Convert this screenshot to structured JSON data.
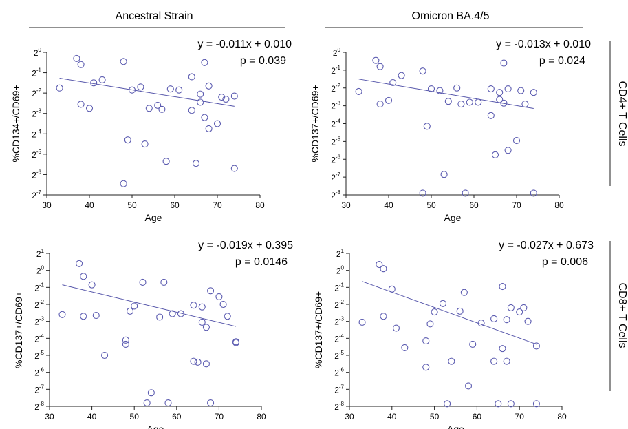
{
  "columns": [
    "Ancestral Strain",
    "Omicron BA.4/5"
  ],
  "rows": [
    "CD4+ T Cells",
    "CD8+ T Cells"
  ],
  "colors": {
    "points": "#5b5bb0",
    "line": "#5555aa",
    "axis": "#222222"
  },
  "chart_data": [
    {
      "type": "scatter",
      "panel": "top-left",
      "title": "Ancestral Strain",
      "xlabel": "Age",
      "ylabel": "%CD134+/CD69+",
      "yscale": "log2",
      "xlim": [
        30,
        80
      ],
      "ylim_exp": [
        -7,
        0
      ],
      "xticks": [
        "30",
        "40",
        "50",
        "60",
        "70",
        "80"
      ],
      "yticks": [
        {
          "base": "2",
          "exp": "0"
        },
        {
          "base": "2",
          "exp": "-1"
        },
        {
          "base": "2",
          "exp": "-2"
        },
        {
          "base": "2",
          "exp": "-3"
        },
        {
          "base": "2",
          "exp": "-4"
        },
        {
          "base": "2",
          "exp": "-5"
        },
        {
          "base": "2",
          "exp": "-6"
        },
        {
          "base": "2",
          "exp": "-7"
        }
      ],
      "equation": "y = -0.011x + 0.010",
      "pvalue": "p = 0.039",
      "fit_exp": [
        [
          33,
          -1.27
        ],
        [
          74,
          -2.65
        ]
      ],
      "points": [
        [
          33,
          -1.75
        ],
        [
          37,
          -0.3
        ],
        [
          38,
          -0.6
        ],
        [
          38,
          -2.55
        ],
        [
          40,
          -2.75
        ],
        [
          41,
          -1.5
        ],
        [
          43,
          -1.35
        ],
        [
          48,
          -0.45
        ],
        [
          48,
          -6.45
        ],
        [
          49,
          -4.3
        ],
        [
          50,
          -1.85
        ],
        [
          52,
          -1.7
        ],
        [
          53,
          -4.5
        ],
        [
          54,
          -2.75
        ],
        [
          56,
          -2.6
        ],
        [
          57,
          -2.8
        ],
        [
          58,
          -5.35
        ],
        [
          59,
          -1.8
        ],
        [
          61,
          -1.85
        ],
        [
          64,
          -1.2
        ],
        [
          64,
          -2.85
        ],
        [
          65,
          -5.45
        ],
        [
          66,
          -2.05
        ],
        [
          66,
          -2.45
        ],
        [
          67,
          -0.5
        ],
        [
          67,
          -3.2
        ],
        [
          68,
          -1.65
        ],
        [
          68,
          -3.75
        ],
        [
          70,
          -3.5
        ],
        [
          71,
          -2.2
        ],
        [
          72,
          -2.3
        ],
        [
          74,
          -2.15
        ],
        [
          74,
          -5.7
        ]
      ]
    },
    {
      "type": "scatter",
      "panel": "top-right",
      "title": "Omicron BA.4/5",
      "xlabel": "Age",
      "ylabel": "%CD137+/CD69+",
      "yscale": "log2",
      "xlim": [
        30,
        80
      ],
      "ylim_exp": [
        -8,
        0
      ],
      "xticks": [
        "30",
        "40",
        "50",
        "60",
        "70",
        "80"
      ],
      "yticks": [
        {
          "base": "2",
          "exp": "0"
        },
        {
          "base": "2",
          "exp": "-1"
        },
        {
          "base": "2",
          "exp": "-2"
        },
        {
          "base": "2",
          "exp": "-3"
        },
        {
          "base": "2",
          "exp": "-4"
        },
        {
          "base": "2",
          "exp": "-5"
        },
        {
          "base": "2",
          "exp": "-6"
        },
        {
          "base": "2",
          "exp": "-7"
        },
        {
          "base": "2",
          "exp": "-8"
        }
      ],
      "equation": "y = -0.013x + 0.010",
      "pvalue": "p = 0.024",
      "fit_exp": [
        [
          33,
          -1.5
        ],
        [
          74,
          -3.15
        ]
      ],
      "points": [
        [
          33,
          -2.2
        ],
        [
          37,
          -0.45
        ],
        [
          38,
          -0.8
        ],
        [
          38,
          -2.9
        ],
        [
          40,
          -2.7
        ],
        [
          41,
          -1.7
        ],
        [
          43,
          -1.3
        ],
        [
          48,
          -1.05
        ],
        [
          48,
          -7.9
        ],
        [
          49,
          -4.15
        ],
        [
          50,
          -2.05
        ],
        [
          52,
          -2.15
        ],
        [
          53,
          -6.85
        ],
        [
          54,
          -2.75
        ],
        [
          56,
          -2.0
        ],
        [
          57,
          -2.9
        ],
        [
          58,
          -7.9
        ],
        [
          59,
          -2.8
        ],
        [
          61,
          -2.8
        ],
        [
          64,
          -2.05
        ],
        [
          64,
          -3.55
        ],
        [
          65,
          -5.75
        ],
        [
          66,
          -2.25
        ],
        [
          66,
          -2.65
        ],
        [
          67,
          -0.6
        ],
        [
          67,
          -2.85
        ],
        [
          68,
          -2.05
        ],
        [
          68,
          -5.5
        ],
        [
          70,
          -4.95
        ],
        [
          71,
          -2.15
        ],
        [
          72,
          -2.9
        ],
        [
          74,
          -2.25
        ],
        [
          74,
          -7.9
        ]
      ]
    },
    {
      "type": "scatter",
      "panel": "bottom-left",
      "title": "",
      "xlabel": "Age",
      "ylabel": "%CD137+/CD69+",
      "yscale": "log2",
      "xlim": [
        30,
        80
      ],
      "ylim_exp": [
        -8,
        1
      ],
      "xticks": [
        "30",
        "40",
        "50",
        "60",
        "70",
        "80"
      ],
      "yticks": [
        {
          "base": "2",
          "exp": "1"
        },
        {
          "base": "2",
          "exp": "0"
        },
        {
          "base": "2",
          "exp": "-1"
        },
        {
          "base": "2",
          "exp": "-2"
        },
        {
          "base": "2",
          "exp": "-3"
        },
        {
          "base": "2",
          "exp": "-4"
        },
        {
          "base": "2",
          "exp": "-5"
        },
        {
          "base": "2",
          "exp": "-6"
        },
        {
          "base": "2",
          "exp": "-7"
        },
        {
          "base": "2",
          "exp": "-8"
        }
      ],
      "equation": "y = -0.019x + 0.395",
      "pvalue": "p = 0.0146",
      "fit_exp": [
        [
          33,
          -0.85
        ],
        [
          74,
          -3.3
        ]
      ],
      "points": [
        [
          33,
          -2.6
        ],
        [
          37,
          0.4
        ],
        [
          38,
          -0.35
        ],
        [
          38,
          -2.7
        ],
        [
          40,
          -0.85
        ],
        [
          41,
          -2.65
        ],
        [
          43,
          -5.0
        ],
        [
          48,
          -4.1
        ],
        [
          48,
          -4.35
        ],
        [
          49,
          -2.4
        ],
        [
          50,
          -2.1
        ],
        [
          52,
          -0.7
        ],
        [
          53,
          -7.8
        ],
        [
          54,
          -7.2
        ],
        [
          56,
          -2.75
        ],
        [
          57,
          -0.7
        ],
        [
          58,
          -7.8
        ],
        [
          59,
          -2.55
        ],
        [
          61,
          -2.55
        ],
        [
          64,
          -2.05
        ],
        [
          64,
          -5.35
        ],
        [
          65,
          -5.4
        ],
        [
          66,
          -2.15
        ],
        [
          66,
          -3.05
        ],
        [
          67,
          -3.35
        ],
        [
          67,
          -5.5
        ],
        [
          68,
          -1.2
        ],
        [
          68,
          -7.8
        ],
        [
          70,
          -1.55
        ],
        [
          71,
          -2.0
        ],
        [
          72,
          -2.7
        ],
        [
          74,
          -4.2
        ],
        [
          74,
          -4.25
        ]
      ]
    },
    {
      "type": "scatter",
      "panel": "bottom-right",
      "title": "",
      "xlabel": "Age",
      "ylabel": "%CD137+/CD69+",
      "yscale": "log2",
      "xlim": [
        30,
        80
      ],
      "ylim_exp": [
        -8,
        1
      ],
      "xticks": [
        "30",
        "40",
        "50",
        "60",
        "70",
        "80"
      ],
      "yticks": [
        {
          "base": "2",
          "exp": "1"
        },
        {
          "base": "2",
          "exp": "0"
        },
        {
          "base": "2",
          "exp": "-1"
        },
        {
          "base": "2",
          "exp": "-2"
        },
        {
          "base": "2",
          "exp": "-3"
        },
        {
          "base": "2",
          "exp": "-4"
        },
        {
          "base": "2",
          "exp": "-5"
        },
        {
          "base": "2",
          "exp": "-6"
        },
        {
          "base": "2",
          "exp": "-7"
        },
        {
          "base": "2",
          "exp": "-8"
        }
      ],
      "equation": "y = -0.027x + 0.673",
      "pvalue": "p = 0.006",
      "fit_exp": [
        [
          33,
          -0.65
        ],
        [
          74,
          -4.35
        ]
      ],
      "points": [
        [
          33,
          -3.05
        ],
        [
          37,
          0.35
        ],
        [
          38,
          0.1
        ],
        [
          38,
          -2.7
        ],
        [
          40,
          -1.1
        ],
        [
          41,
          -3.4
        ],
        [
          43,
          -4.55
        ],
        [
          48,
          -4.15
        ],
        [
          48,
          -5.7
        ],
        [
          49,
          -3.15
        ],
        [
          50,
          -2.45
        ],
        [
          52,
          -1.95
        ],
        [
          53,
          -7.85
        ],
        [
          54,
          -5.35
        ],
        [
          56,
          -2.4
        ],
        [
          57,
          -1.3
        ],
        [
          58,
          -6.8
        ],
        [
          59,
          -4.35
        ],
        [
          61,
          -3.1
        ],
        [
          64,
          -2.85
        ],
        [
          64,
          -5.35
        ],
        [
          65,
          -7.85
        ],
        [
          66,
          -4.6
        ],
        [
          66,
          -0.95
        ],
        [
          67,
          -2.9
        ],
        [
          67,
          -5.35
        ],
        [
          68,
          -2.2
        ],
        [
          68,
          -7.85
        ],
        [
          70,
          -2.45
        ],
        [
          71,
          -2.2
        ],
        [
          72,
          -3.0
        ],
        [
          74,
          -4.45
        ],
        [
          74,
          -7.85
        ]
      ]
    }
  ]
}
